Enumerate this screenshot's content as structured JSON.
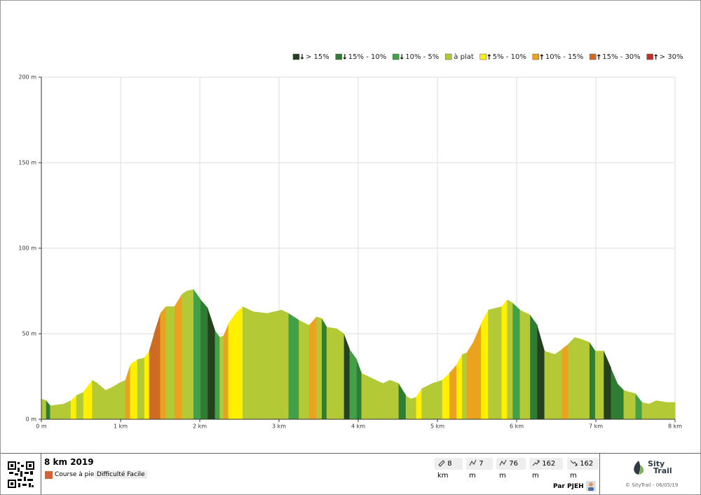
{
  "chart_data": {
    "type": "area",
    "x": [
      0,
      0.06,
      0.11,
      0.28,
      0.37,
      0.44,
      0.53,
      0.64,
      0.71,
      0.81,
      0.9,
      0.97,
      1.06,
      1.12,
      1.21,
      1.3,
      1.36,
      1.42,
      1.5,
      1.57,
      1.68,
      1.77,
      1.83,
      1.92,
      2.01,
      2.1,
      2.19,
      2.25,
      2.3,
      2.36,
      2.45,
      2.54,
      2.67,
      2.85,
      3.03,
      3.12,
      3.25,
      3.38,
      3.47,
      3.54,
      3.6,
      3.73,
      3.82,
      3.89,
      3.98,
      4.04,
      4.13,
      4.22,
      4.31,
      4.4,
      4.51,
      4.6,
      4.66,
      4.73,
      4.8,
      4.93,
      5.06,
      5.15,
      5.24,
      5.31,
      5.37,
      5.46,
      5.55,
      5.64,
      5.73,
      5.81,
      5.88,
      5.95,
      6.04,
      6.17,
      6.26,
      6.35,
      6.48,
      6.57,
      6.65,
      6.73,
      6.81,
      6.92,
      6.99,
      7.1,
      7.19,
      7.27,
      7.35,
      7.5,
      7.58,
      7.67,
      7.76,
      7.89,
      8
    ],
    "values": [
      12,
      11,
      8,
      9,
      11,
      14,
      16,
      23,
      21,
      17,
      19,
      21,
      23,
      32,
      35,
      36,
      40,
      50,
      62,
      66,
      66,
      73,
      75,
      76,
      70,
      65,
      52,
      48,
      49,
      56,
      62,
      66,
      63,
      62,
      64,
      62,
      58,
      55,
      60,
      59,
      54,
      53,
      50,
      41,
      35,
      27,
      25,
      23,
      21,
      23,
      21,
      14,
      12,
      13,
      18,
      21,
      23,
      27,
      32,
      38,
      39,
      46,
      56,
      64,
      65,
      66,
      70,
      68,
      64,
      61,
      55,
      40,
      38,
      41,
      44,
      48,
      47,
      45,
      40,
      40,
      30,
      21,
      17,
      15,
      10,
      9,
      11,
      10,
      10
    ],
    "segment_classes": [
      3,
      1,
      3,
      3,
      4,
      3,
      4,
      3,
      3,
      3,
      3,
      3,
      5,
      4,
      3,
      4,
      6,
      6,
      5,
      3,
      5,
      3,
      3,
      2,
      1,
      0,
      2,
      3,
      5,
      4,
      4,
      3,
      3,
      3,
      3,
      2,
      3,
      5,
      3,
      1,
      3,
      3,
      0,
      2,
      1,
      3,
      3,
      3,
      3,
      3,
      1,
      3,
      3,
      4,
      3,
      3,
      4,
      5,
      4,
      3,
      5,
      5,
      4,
      3,
      3,
      4,
      3,
      2,
      3,
      1,
      0,
      3,
      3,
      5,
      3,
      3,
      3,
      1,
      3,
      0,
      1,
      1,
      3,
      2,
      3,
      3,
      3,
      3
    ],
    "legend": [
      {
        "name": "> 15%",
        "color": "#24401f",
        "direction": "down"
      },
      {
        "name": "15% - 10%",
        "color": "#2e7d32",
        "direction": "down"
      },
      {
        "name": "10% - 5%",
        "color": "#43a047",
        "direction": "down"
      },
      {
        "name": "à plat",
        "color": "#b3c935",
        "direction": null
      },
      {
        "name": "5% - 10%",
        "color": "#fff000",
        "direction": "up"
      },
      {
        "name": "10% - 15%",
        "color": "#eba21f",
        "direction": "up"
      },
      {
        "name": "15% - 30%",
        "color": "#cf6c24",
        "direction": "up"
      },
      {
        "name": "> 30%",
        "color": "#c0302a",
        "direction": "up"
      }
    ],
    "xlim": [
      0,
      8
    ],
    "xticks": [
      {
        "value": 0,
        "label": "0 m"
      },
      {
        "value": 1,
        "label": "1 km"
      },
      {
        "value": 2,
        "label": "2 km"
      },
      {
        "value": 3,
        "label": "3 km"
      },
      {
        "value": 4,
        "label": "4 km"
      },
      {
        "value": 5,
        "label": "5 km"
      },
      {
        "value": 6,
        "label": "6 km"
      },
      {
        "value": 7,
        "label": "7 km"
      },
      {
        "value": 8,
        "label": "8 km"
      }
    ],
    "ylim": [
      0,
      200
    ],
    "yticks": [
      {
        "value": 0,
        "label": "0 m"
      },
      {
        "value": 50,
        "label": "50 m"
      },
      {
        "value": 100,
        "label": "100 m"
      },
      {
        "value": 150,
        "label": "150 m"
      },
      {
        "value": 200,
        "label": "200 m"
      }
    ],
    "grid": true
  },
  "footer": {
    "title": "8 km 2019",
    "activity": "Course à pied",
    "difficulty": "Difficulté Facile",
    "stats": [
      "8 km",
      "7 m",
      "76 m",
      "162 m",
      "162 m"
    ],
    "author": "Par PJEH",
    "brand": [
      "Sity",
      "Trail"
    ],
    "copyright": "© SityTrail - 06/05/19"
  }
}
